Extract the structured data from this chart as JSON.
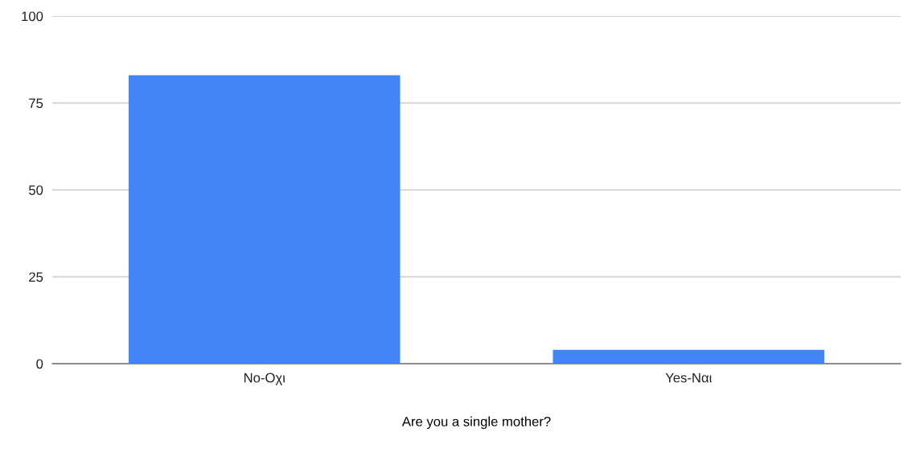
{
  "chart_data": {
    "type": "bar",
    "xlabel": "Are you a single mother?",
    "categories": [
      "No-Oχι",
      "Yes-Ναι"
    ],
    "values": [
      83,
      4
    ],
    "color": "#4285f4",
    "ylim": [
      0,
      100
    ],
    "yticks": [
      0,
      25,
      50,
      75,
      100
    ],
    "grid": "y",
    "legend": false
  }
}
